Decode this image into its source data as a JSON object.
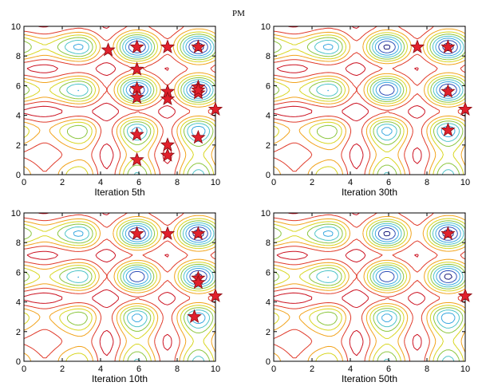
{
  "figure": {
    "title": "PM"
  },
  "colors": {
    "contour_levels": [
      "#1a1a7a",
      "#2f4fb8",
      "#3aa8e0",
      "#4fc4c8",
      "#8cc63f",
      "#d8d620",
      "#f2a31c",
      "#e03a2a",
      "#cc1020"
    ],
    "star_fill": "#e0202c",
    "star_stroke": "#8a0a10"
  },
  "chart_data": [
    {
      "type": "scatter",
      "xlabel": "Iteration 5th",
      "xlim": [
        0,
        10
      ],
      "ylim": [
        0,
        10
      ],
      "xticks": [
        0,
        2,
        4,
        6,
        8,
        10
      ],
      "yticks": [
        0,
        2,
        4,
        6,
        8,
        10
      ],
      "x": [
        4.4,
        5.9,
        7.5,
        9.1,
        5.9,
        5.9,
        5.9,
        7.5,
        7.5,
        9.1,
        9.1,
        9.1,
        10.0,
        5.9,
        7.5,
        9.1,
        7.5,
        5.9
      ],
      "y": [
        8.4,
        8.6,
        8.6,
        8.6,
        7.1,
        5.8,
        5.2,
        5.6,
        5.1,
        5.9,
        5.5,
        5.7,
        4.4,
        2.7,
        2.0,
        2.5,
        1.3,
        1.0
      ]
    },
    {
      "type": "scatter",
      "xlabel": "Iteration 30th",
      "xlim": [
        0,
        10
      ],
      "ylim": [
        0,
        10
      ],
      "xticks": [
        0,
        2,
        4,
        6,
        8,
        10
      ],
      "yticks": [
        0,
        2,
        4,
        6,
        8,
        10
      ],
      "x": [
        7.5,
        9.1,
        9.1,
        10.0,
        9.1
      ],
      "y": [
        8.6,
        8.6,
        5.6,
        4.4,
        3.0
      ]
    },
    {
      "type": "scatter",
      "xlabel": "Iteration 10th",
      "xlim": [
        0,
        10
      ],
      "ylim": [
        0,
        10
      ],
      "xticks": [
        0,
        2,
        4,
        6,
        8,
        10
      ],
      "yticks": [
        0,
        2,
        4,
        6,
        8,
        10
      ],
      "x": [
        5.9,
        7.5,
        9.1,
        9.1,
        9.1,
        10.0,
        8.9
      ],
      "y": [
        8.6,
        8.6,
        8.6,
        5.6,
        5.3,
        4.4,
        3.0
      ]
    },
    {
      "type": "scatter",
      "xlabel": "Iteration 50th",
      "xlim": [
        0,
        10
      ],
      "ylim": [
        0,
        10
      ],
      "xticks": [
        0,
        2,
        4,
        6,
        8,
        10
      ],
      "yticks": [
        0,
        2,
        4,
        6,
        8,
        10
      ],
      "x": [
        9.1,
        10.0
      ],
      "y": [
        8.6,
        4.4
      ]
    }
  ]
}
